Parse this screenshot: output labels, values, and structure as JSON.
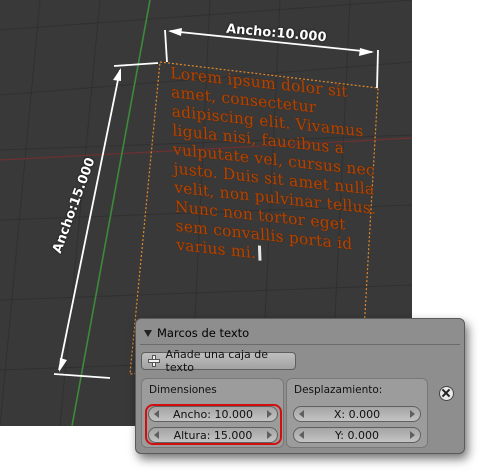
{
  "editor_text": {
    "lines": [
      "Lorem ipsum dolor sit",
      "amet, consectetur",
      "adipiscing elit. Vivamus",
      "ligula nisi, faucibus a",
      "vulputate vel, cursus nec",
      "justo. Duis sit amet nulla",
      "velit, non pulvinar tellus.",
      "Nunc non tortor eget",
      "sem convallis porta id",
      "varius mi."
    ]
  },
  "annotations": {
    "width_label": "Ancho:10.000",
    "height_label": "Ancho:15.000"
  },
  "panel": {
    "title": "Marcos de texto",
    "add_button_label": "Añade una caja de texto",
    "dimensions": {
      "title": "Dimensiones",
      "width_field": "Ancho: 10.000",
      "height_field": "Altura: 15.000"
    },
    "offset": {
      "title": "Desplazamiento:",
      "x_field": "X: 0.000",
      "y_field": "Y: 0.000"
    }
  },
  "colors": {
    "viewport_bg": "#393939",
    "text_object": "#b34400",
    "frame_outline": "#e08a2a",
    "highlight": "#d10f0f"
  },
  "icons": [
    "plus-icon",
    "close-icon",
    "collapse-triangle-icon"
  ]
}
